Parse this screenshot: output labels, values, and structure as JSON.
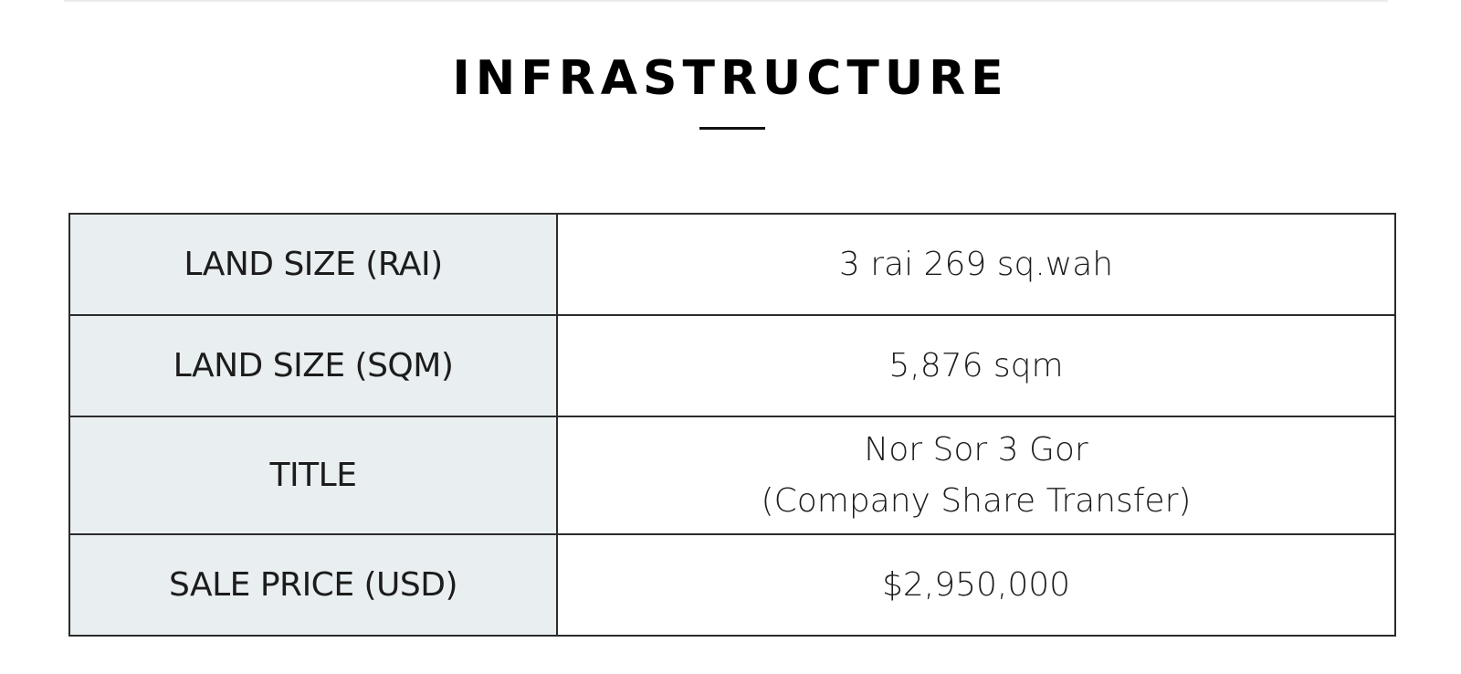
{
  "section": {
    "title": "INFRASTRUCTURE"
  },
  "table": {
    "rows": [
      {
        "label": "LAND SIZE (RAI)",
        "value_lines": [
          "3 rai 269 sq.wah"
        ]
      },
      {
        "label": "LAND SIZE (SQM)",
        "value_lines": [
          "5,876 sqm"
        ]
      },
      {
        "label": "TITLE",
        "value_lines": [
          "Nor Sor 3 Gor",
          "(Company Share Transfer)"
        ]
      },
      {
        "label": "SALE PRICE (USD)",
        "value_lines": [
          "$2,950,000"
        ]
      }
    ]
  }
}
